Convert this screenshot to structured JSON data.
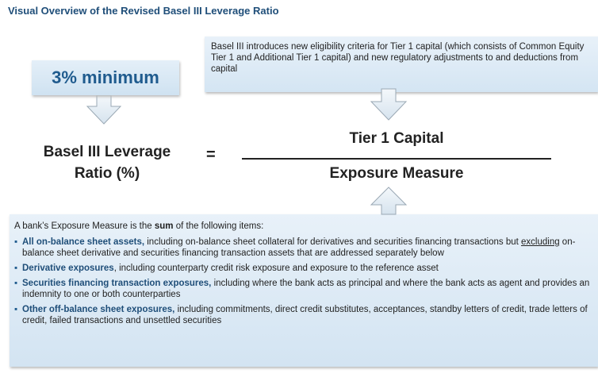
{
  "title": "Visual Overview of the Revised Basel III Leverage Ratio",
  "minimum_box": {
    "label": "3% minimum"
  },
  "tier1_note": "Basel III introduces new eligibility criteria for Tier 1 capital (which consists of Common Equity Tier 1 and Additional Tier 1 capital) and new regulatory adjustments to and deductions from capital",
  "formula": {
    "lhs": "Basel III Leverage Ratio (%)",
    "equals": "=",
    "numerator": "Tier 1 Capital",
    "denominator": "Exposure Measure"
  },
  "exposure": {
    "intro": {
      "before": "A bank’s Exposure Measure is the ",
      "bold": "sum",
      "after": " of the following  items:"
    },
    "items": [
      {
        "bold": "All on-balance sheet assets,",
        "text": " including on-balance sheet collateral for derivatives and securities financing transactions but ",
        "underline": "excluding",
        "rest": " on-balance sheet derivative and securities financing transaction assets that are addressed separately below"
      },
      {
        "bold": "Derivative exposures",
        "text": ", including counterparty credit risk exposure and exposure to the reference asset"
      },
      {
        "bold": "Securities financing transaction exposures,",
        "text": " including where the bank acts as principal and where the bank acts as agent and provides an indemnity to one or both counterparties"
      },
      {
        "bold": "Other off-balance sheet exposures,",
        "text": " including commitments, direct credit substitutes, acceptances, standby letters of credit, trade letters of credit, failed transactions and unsettled securities"
      }
    ]
  }
}
